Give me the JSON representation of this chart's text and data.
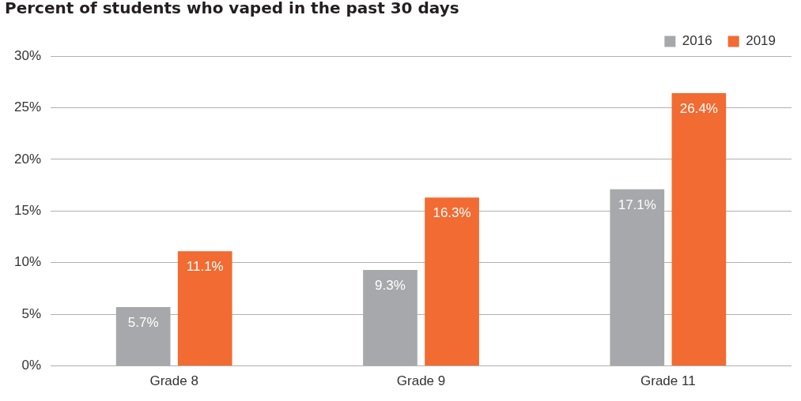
{
  "chart_data": {
    "type": "bar",
    "title": "Percent of students who vaped in the past 30 days",
    "categories": [
      "Grade 8",
      "Grade 9",
      "Grade 11"
    ],
    "series": [
      {
        "name": "2016",
        "color": "#a7a8ab",
        "values": [
          5.7,
          9.3,
          17.1
        ],
        "value_labels": [
          "5.7%",
          "9.3%",
          "17.1%"
        ]
      },
      {
        "name": "2019",
        "color": "#f26b32",
        "values": [
          11.1,
          16.3,
          26.4
        ],
        "value_labels": [
          "11.1%",
          "16.3%",
          "26.4%"
        ]
      }
    ],
    "ylim": [
      0,
      30
    ],
    "yticks": [
      {
        "value": 0,
        "label": "0%"
      },
      {
        "value": 5,
        "label": "5%"
      },
      {
        "value": 10,
        "label": "10%"
      },
      {
        "value": 15,
        "label": "15%"
      },
      {
        "value": 20,
        "label": "20%"
      },
      {
        "value": 25,
        "label": "25%"
      },
      {
        "value": 30,
        "label": "30%"
      }
    ],
    "grid": "y",
    "legend": "top right"
  }
}
